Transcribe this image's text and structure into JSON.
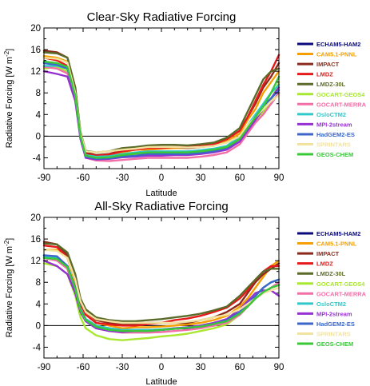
{
  "chart_data": [
    {
      "type": "line",
      "title": "Clear-Sky Radiative Forcing",
      "xlabel": "Latitude",
      "ylabel": "Radiative Forcing [W m",
      "ylabel_sup": "-2",
      "ylabel_close": "]",
      "xlim": [
        -90,
        90
      ],
      "ylim": [
        -6,
        20
      ],
      "xticks": [
        "-90",
        "-60",
        "-30",
        "0",
        "30",
        "60",
        "90"
      ],
      "yticks": [
        "-4",
        "0",
        "4",
        "8",
        "12",
        "16",
        "20"
      ],
      "x": [
        -90,
        -80,
        -72,
        -66,
        -62,
        -58,
        -50,
        -40,
        -30,
        -20,
        -10,
        0,
        10,
        20,
        30,
        40,
        50,
        60,
        66,
        72,
        78,
        84,
        90
      ],
      "series": [
        {
          "name": "ECHAM5-HAM2",
          "color": "#0a0a7a",
          "values": [
            13.5,
            13.4,
            12.5,
            7,
            0,
            -3.5,
            -4,
            -4,
            -3.6,
            -3.4,
            -3.2,
            -3,
            -3,
            -3,
            -2.8,
            -2.6,
            -2.2,
            -0.5,
            1.5,
            3.5,
            4.5,
            6,
            8
          ]
        },
        {
          "name": "CAM5.1-PNNL",
          "color": "#f5a000",
          "values": [
            14.8,
            14.5,
            13.8,
            8,
            0,
            -3,
            -3.5,
            -3.5,
            -3,
            -2.5,
            -2.5,
            -2.3,
            -2.2,
            -2.2,
            -2,
            -1.8,
            -1,
            0.5,
            3,
            5,
            8,
            10,
            12
          ]
        },
        {
          "name": "IMPACT",
          "color": "#8b2a1c",
          "values": [
            15.8,
            15.5,
            14.5,
            9,
            0.5,
            -3,
            -3.5,
            -3.3,
            -2.6,
            -2.3,
            -2,
            -2,
            -2,
            -2.2,
            -2,
            -1.6,
            -0.5,
            1,
            3.5,
            6,
            9,
            11,
            13.5
          ]
        },
        {
          "name": "LMDZ",
          "color": "#e61a1a",
          "values": [
            14.5,
            14,
            13,
            8,
            0,
            -3.3,
            -3.6,
            -3.4,
            -2.8,
            -2.5,
            -2.2,
            -2.2,
            -2,
            -2,
            -1.8,
            -1.5,
            -0.6,
            1,
            3.5,
            6.5,
            9.5,
            12,
            15
          ]
        },
        {
          "name": "LMDZ-30L",
          "color": "#5a6a28",
          "values": [
            15.5,
            15.3,
            14.5,
            9,
            0.8,
            -2.7,
            -3,
            -2.8,
            -2.2,
            -2,
            -1.7,
            -1.6,
            -1.6,
            -1.7,
            -1.5,
            -1.2,
            -0.3,
            1.5,
            4.5,
            7.5,
            10.5,
            12,
            12.5
          ]
        },
        {
          "name": "GOCART-GEOS4",
          "color": "#a8e830",
          "values": [
            12.5,
            12.8,
            12,
            7,
            0,
            -3.5,
            -4,
            -4,
            -3.6,
            -3.4,
            -3,
            -3,
            -3,
            -3,
            -2.8,
            -2.6,
            -2.2,
            -1,
            1,
            3,
            4.5,
            6.5,
            10
          ]
        },
        {
          "name": "GOCART-MERRA",
          "color": "#f26ea6",
          "values": [
            12.8,
            12.5,
            11.6,
            7,
            -0.5,
            -4,
            -4.5,
            -4.6,
            -4.4,
            -4.2,
            -4,
            -4,
            -4,
            -4,
            -3.8,
            -3.5,
            -3,
            -1.5,
            0.5,
            2.5,
            4,
            6,
            8
          ]
        },
        {
          "name": "OsloCTM2",
          "color": "#30c8c8",
          "values": [
            13,
            13,
            12.5,
            7.5,
            0,
            -3.5,
            -3.8,
            -3.7,
            -3.3,
            -3,
            -2.8,
            -2.8,
            -2.8,
            -2.8,
            -2.6,
            -2.3,
            -1.8,
            0,
            2,
            4,
            6,
            8,
            9.5
          ]
        },
        {
          "name": "MPI-2stream",
          "color": "#9630d2",
          "values": [
            12,
            11.5,
            11,
            6.5,
            -0.5,
            -4,
            -4.3,
            -4.2,
            -3.9,
            -3.8,
            -3.6,
            -3.6,
            -3.5,
            -3.5,
            -3.3,
            -3,
            -2.5,
            -1,
            1,
            3,
            5,
            7,
            9
          ]
        },
        {
          "name": "HadGEM2-ES",
          "color": "#3d66c8",
          "values": [
            13.5,
            13.2,
            12.5,
            7.5,
            0,
            -3.8,
            -4.2,
            -4.1,
            -3.8,
            -3.6,
            -3.3,
            -3.3,
            -3.3,
            -3.3,
            -3.1,
            -2.8,
            -2.2,
            -0.5,
            1.5,
            3.5,
            5.5,
            7,
            8.5
          ]
        },
        {
          "name": "SPRINTARS",
          "color": "#f2e2a0",
          "values": [
            14.5,
            14.3,
            13.6,
            8,
            0.5,
            -2.8,
            -3,
            -2.8,
            -2.5,
            -2.3,
            -2,
            -2,
            -2,
            -2.1,
            -2,
            -1.8,
            -1.2,
            0,
            2,
            3.5,
            5,
            6.5,
            7.5
          ]
        },
        {
          "name": "GEOS-CHEM",
          "color": "#38c838",
          "values": [
            13.8,
            13.5,
            12.8,
            7.5,
            0,
            -3.6,
            -4,
            -3.9,
            -3.5,
            -3.2,
            -3,
            -3,
            -3,
            -3,
            -2.8,
            -2.5,
            -2,
            -0.5,
            1.5,
            3.5,
            5.5,
            8,
            11
          ]
        }
      ]
    },
    {
      "type": "line",
      "title": "All-Sky Radiative Forcing",
      "xlabel": "Latitude",
      "ylabel": "Radiative Forcing [W m",
      "ylabel_sup": "-2",
      "ylabel_close": "]",
      "xlim": [
        -90,
        90
      ],
      "ylim": [
        -6,
        20
      ],
      "xticks": [
        "-90",
        "-60",
        "-30",
        "0",
        "30",
        "60",
        "90"
      ],
      "yticks": [
        "-4",
        "0",
        "4",
        "8",
        "12",
        "16",
        "20"
      ],
      "x": [
        -90,
        -80,
        -72,
        -66,
        -62,
        -58,
        -50,
        -40,
        -30,
        -20,
        -10,
        0,
        10,
        20,
        30,
        40,
        50,
        60,
        66,
        72,
        78,
        84,
        90
      ],
      "series": [
        {
          "name": "ECHAM5-HAM2",
          "color": "#0a0a7a",
          "values": [
            13,
            12.5,
            10.5,
            6.5,
            3,
            1.2,
            0,
            -0.5,
            -0.8,
            -0.8,
            -0.8,
            -0.8,
            -0.5,
            -0.5,
            -0.3,
            0,
            0.5,
            2,
            3.5,
            5,
            6,
            7,
            7.5
          ]
        },
        {
          "name": "CAM5.1-PNNL",
          "color": "#f5a000",
          "values": [
            14,
            14,
            12.5,
            8,
            4,
            2,
            0.5,
            0,
            -0.5,
            -0.3,
            -0.3,
            -0.2,
            0,
            0.2,
            0.5,
            1,
            1.8,
            3.5,
            5,
            7,
            9,
            11,
            12
          ]
        },
        {
          "name": "IMPACT",
          "color": "#8b2a1c",
          "values": [
            15.5,
            15,
            13,
            9,
            4.5,
            2.5,
            1,
            0.5,
            0.3,
            0.3,
            0.5,
            0.5,
            0.5,
            0.5,
            1,
            1.5,
            2.5,
            4,
            6,
            8,
            9.5,
            10.5,
            11.5
          ]
        },
        {
          "name": "LMDZ",
          "color": "#e61a1a",
          "values": [
            14.8,
            14.5,
            12.5,
            8.5,
            4,
            2,
            0.5,
            0.2,
            0,
            0,
            0.3,
            0.5,
            1,
            1.3,
            1.8,
            2.5,
            3.3,
            5,
            6.5,
            8.5,
            10,
            11,
            11
          ]
        },
        {
          "name": "LMDZ-30L",
          "color": "#5a6a28",
          "values": [
            15.2,
            15,
            13.5,
            9.5,
            5,
            3,
            1.5,
            1,
            0.8,
            0.8,
            1,
            1.2,
            1.5,
            1.8,
            2.2,
            2.8,
            3.5,
            5.5,
            7,
            8.5,
            10,
            10.5,
            10.5
          ]
        },
        {
          "name": "GOCART-GEOS4",
          "color": "#a8e830",
          "values": [
            11.5,
            11,
            9.5,
            5.5,
            1.5,
            -0.5,
            -1.8,
            -2.5,
            -2.7,
            -2.5,
            -2.3,
            -2,
            -1.8,
            -1.5,
            -1,
            -0.5,
            0.2,
            2,
            3.5,
            5,
            6,
            7,
            7.5
          ]
        },
        {
          "name": "GOCART-MERRA",
          "color": "#f26ea6",
          "values": [
            12.5,
            12,
            10.5,
            6.5,
            2.5,
            0.8,
            -0.5,
            -1,
            -1.3,
            -1.3,
            -1.3,
            -1.2,
            -1,
            -0.8,
            -0.5,
            0,
            0.5,
            2,
            3.5,
            5,
            6,
            7,
            8
          ]
        },
        {
          "name": "OsloCTM2",
          "color": "#30c8c8",
          "values": [
            12.8,
            12.5,
            11,
            7,
            3,
            1.2,
            0,
            -0.5,
            -0.8,
            -0.8,
            -0.8,
            -0.7,
            -0.5,
            -0.3,
            0,
            0.5,
            1,
            2.5,
            4,
            5.5,
            7,
            8,
            8.5
          ]
        },
        {
          "name": "MPI-2stream",
          "color": "#9630d2",
          "values": [
            12,
            11,
            9.5,
            6,
            2.5,
            0.8,
            -0.5,
            -1,
            -1.2,
            -1,
            -1,
            -0.8,
            -0.5,
            -0.3,
            0,
            0.5,
            1.2,
            3,
            4.5,
            6,
            6.5,
            6.5,
            5.5
          ]
        },
        {
          "name": "HadGEM2-ES",
          "color": "#3d66c8",
          "values": [
            13,
            12.8,
            11,
            7,
            3,
            1,
            -0.3,
            -0.8,
            -1,
            -1,
            -1,
            -0.8,
            -0.6,
            -0.4,
            -0.2,
            0.3,
            1,
            2.5,
            4,
            5.5,
            7,
            8,
            8.5
          ]
        },
        {
          "name": "SPRINTARS",
          "color": "#f2e2a0",
          "values": [
            14,
            13.8,
            12.5,
            8.5,
            4.5,
            2.5,
            1.2,
            0.8,
            0.5,
            0.5,
            0.5,
            0.5,
            0.5,
            0.7,
            1,
            1.5,
            2,
            3,
            4,
            5,
            6,
            6.5,
            7
          ]
        },
        {
          "name": "GEOS-CHEM",
          "color": "#38c838",
          "values": [
            12.5,
            12.3,
            10.8,
            6.8,
            2.8,
            1,
            -0.2,
            -0.8,
            -1,
            -1,
            -1,
            -0.8,
            -0.6,
            -0.4,
            -0.2,
            0.3,
            0.8,
            2.2,
            3.5,
            5,
            6.2,
            7,
            7.5
          ]
        }
      ]
    }
  ]
}
